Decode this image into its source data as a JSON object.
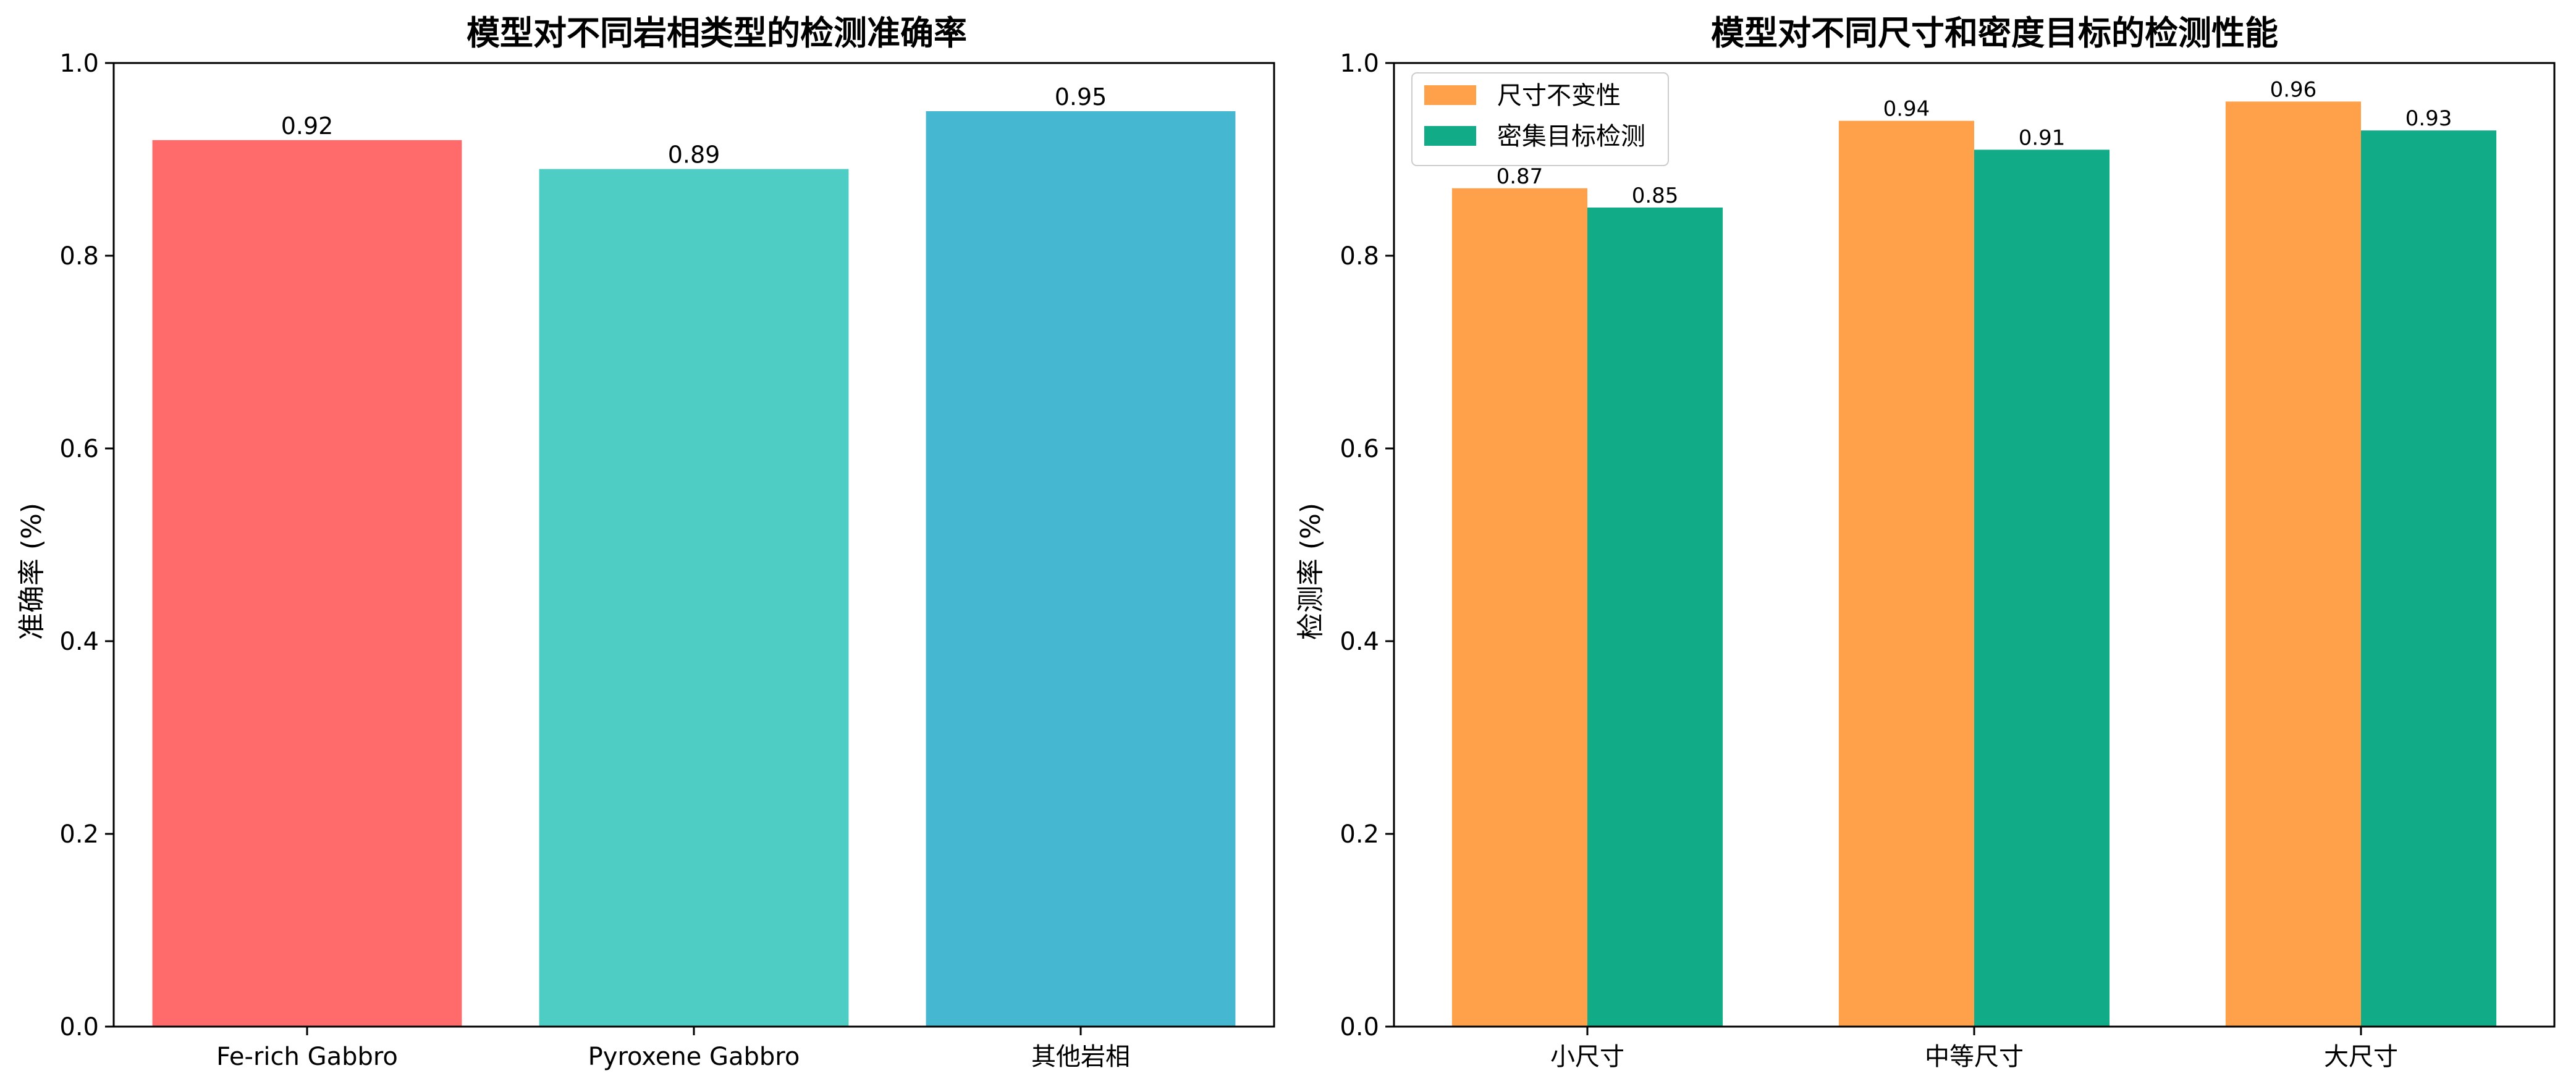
{
  "chart_data": [
    {
      "type": "bar",
      "title": "模型对不同岩相类型的检测准确率",
      "xlabel": "",
      "ylabel": "准确率 (%)",
      "ylim": [
        0,
        1.0
      ],
      "yticks": [
        "0.0",
        "0.2",
        "0.4",
        "0.6",
        "0.8",
        "1.0"
      ],
      "categories": [
        "Fe-rich Gabbro",
        "Pyroxene Gabbro",
        "其他岩相"
      ],
      "values": [
        0.92,
        0.89,
        0.95
      ],
      "value_labels": [
        "0.92",
        "0.89",
        "0.95"
      ],
      "colors": [
        "#ff6b6b",
        "#4ecdc4",
        "#45b7d1"
      ],
      "grid": false,
      "legend": null
    },
    {
      "type": "bar",
      "title": "模型对不同尺寸和密度目标的检测性能",
      "xlabel": "",
      "ylabel": "检测率 (%)",
      "ylim": [
        0,
        1.0
      ],
      "yticks": [
        "0.0",
        "0.2",
        "0.4",
        "0.6",
        "0.8",
        "1.0"
      ],
      "categories": [
        "小尺寸",
        "中等尺寸",
        "大尺寸"
      ],
      "series": [
        {
          "name": "尺寸不变性",
          "values": [
            0.87,
            0.94,
            0.96
          ],
          "value_labels": [
            "0.87",
            "0.94",
            "0.96"
          ],
          "color": "#ffa04a"
        },
        {
          "name": "密集目标检测",
          "values": [
            0.85,
            0.91,
            0.93
          ],
          "value_labels": [
            "0.85",
            "0.91",
            "0.93"
          ],
          "color": "#12ab87"
        }
      ],
      "grid": false,
      "legend": "top-left"
    }
  ]
}
